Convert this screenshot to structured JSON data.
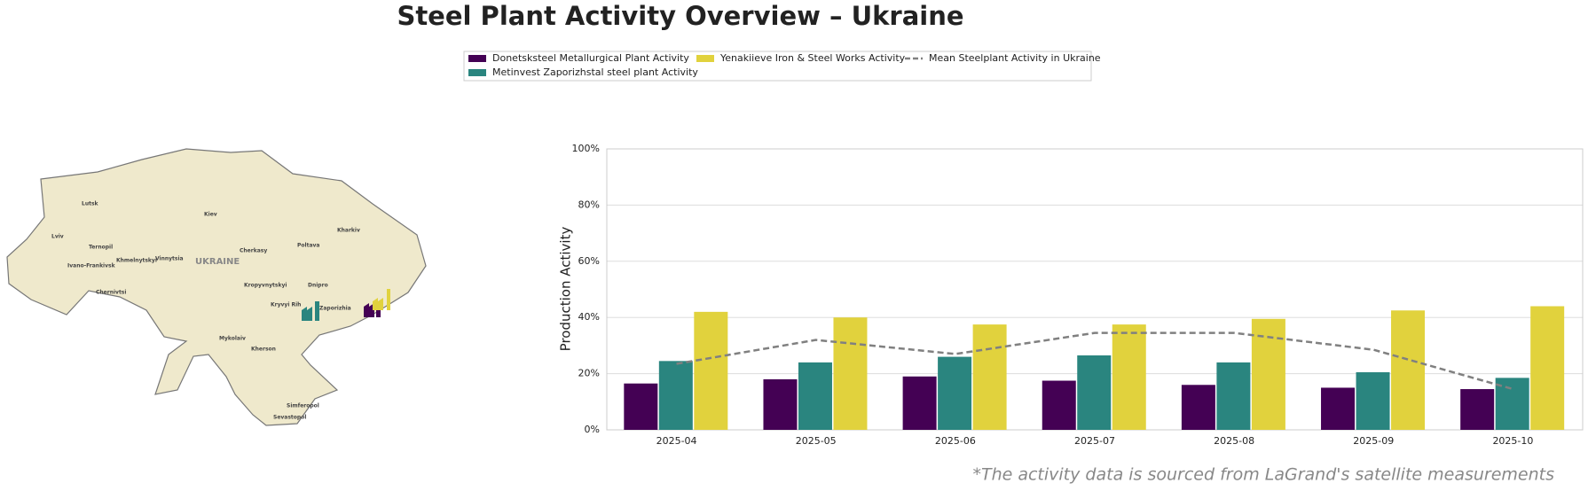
{
  "chart_data": {
    "type": "bar",
    "title": "Steel Plant Activity Overview – Ukraine",
    "y_label": "Production Activity",
    "categories": [
      "2025-04",
      "2025-05",
      "2025-06",
      "2025-07",
      "2025-08",
      "2025-09",
      "2025-10"
    ],
    "series": [
      {
        "name": "Donetsksteel Metallurgical Plant Activity",
        "color": "#440154",
        "type": "bar",
        "values": [
          16.5,
          18,
          19,
          17.5,
          16,
          15,
          14.5
        ]
      },
      {
        "name": "Metinvest Zaporizhstal steel plant Activity",
        "color": "#2a857f",
        "type": "bar",
        "values": [
          24.5,
          24,
          26,
          26.5,
          24,
          20.5,
          18.5
        ]
      },
      {
        "name": "Yenakiieve Iron & Steel Works Activity",
        "color": "#e1d23d",
        "type": "bar",
        "values": [
          42,
          40,
          37.5,
          37.5,
          39.5,
          42.5,
          44
        ]
      },
      {
        "name": "Mean Steelplant Activity in Ukraine",
        "color": "#808080",
        "type": "line",
        "dashed": true,
        "values": [
          23.5,
          32,
          27,
          34.5,
          34.5,
          28.5,
          14.5
        ]
      }
    ],
    "ylim": [
      0,
      100
    ],
    "yticks": [
      {
        "value": 0,
        "label": "0%"
      },
      {
        "value": 20,
        "label": "20%"
      },
      {
        "value": 40,
        "label": "40%"
      },
      {
        "value": 60,
        "label": "60%"
      },
      {
        "value": 80,
        "label": "80%"
      },
      {
        "value": 100,
        "label": "100%"
      }
    ],
    "grid": true,
    "legend": "top"
  },
  "map": {
    "labels": [
      "Lutsk",
      "Kiev",
      "Kharkiv",
      "Lviv",
      "Ternopil",
      "Khmelnytskyi",
      "Vinnytsia",
      "UKRAINE",
      "Cherkasy",
      "Poltava",
      "Ivano-Frankivsk",
      "Chernivtsi",
      "Kropyvnytskyi",
      "Dnipro",
      "Kryvyi Rih",
      "Zaporizhia",
      "Mykolaiv",
      "Kherson",
      "Simferopol",
      "Sevastopol"
    ]
  },
  "footnote": "*The activity data is sourced from LaGrand's satellite measurements"
}
